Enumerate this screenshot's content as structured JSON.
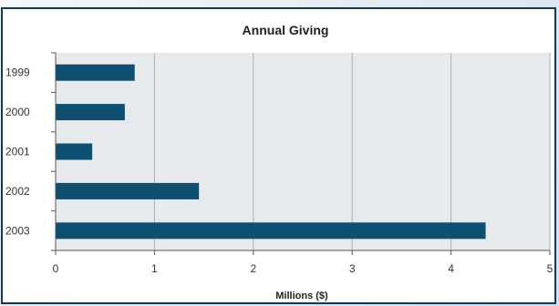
{
  "chart_data": {
    "type": "bar",
    "orientation": "horizontal",
    "title": "Annual Giving",
    "xlabel": "Millions ($)",
    "ylabel": "",
    "categories": [
      "1999",
      "2000",
      "2001",
      "2002",
      "2003"
    ],
    "values": [
      0.8,
      0.7,
      0.37,
      1.45,
      4.35
    ],
    "xlim": [
      0,
      5
    ],
    "xticks": [
      "0",
      "1",
      "2",
      "3",
      "4",
      "5"
    ],
    "grid": "vertical",
    "legend": "none",
    "colors": {
      "bar": "#0f4f72",
      "plot_background": "#e7eaed",
      "frame": "#0e3a57",
      "gridline": "#a9b0b6"
    }
  }
}
